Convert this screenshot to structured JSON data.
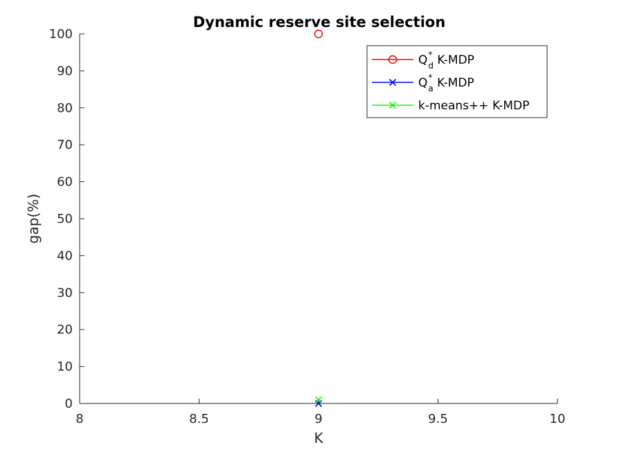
{
  "chart_data": {
    "type": "scatter",
    "title": "Dynamic reserve site selection",
    "xlabel": "K",
    "ylabel": "gap(%)",
    "xlim": [
      8,
      10
    ],
    "ylim": [
      0,
      100
    ],
    "xticks": [
      8,
      8.5,
      9,
      9.5,
      10
    ],
    "xtick_labels": [
      "8",
      "8.5",
      "9",
      "9.5",
      "10"
    ],
    "yticks": [
      0,
      10,
      20,
      30,
      40,
      50,
      60,
      70,
      80,
      90,
      100
    ],
    "ytick_labels": [
      "0",
      "10",
      "20",
      "30",
      "40",
      "50",
      "60",
      "70",
      "80",
      "90",
      "100"
    ],
    "grid": false,
    "legend_position": "top-right",
    "series": [
      {
        "key": "qd",
        "legend_main": "Q",
        "legend_sup": "*",
        "legend_sub": "d",
        "legend_rest": " K-MDP",
        "color": "#ff0000",
        "marker": "circle",
        "x": [
          9
        ],
        "y": [
          100
        ]
      },
      {
        "key": "qa",
        "legend_main": "Q",
        "legend_sup": "*",
        "legend_sub": "a",
        "legend_rest": " K-MDP",
        "color": "#0000ff",
        "marker": "x",
        "x": [
          9
        ],
        "y": [
          0
        ]
      },
      {
        "key": "km",
        "legend_main": "k-means++ K-MDP",
        "legend_sup": "",
        "legend_sub": "",
        "legend_rest": "",
        "color": "#00ff00",
        "marker": "x",
        "x": [
          9
        ],
        "y": [
          1
        ]
      }
    ]
  }
}
